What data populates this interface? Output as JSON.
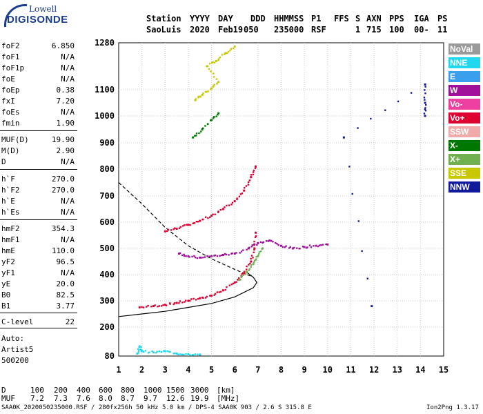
{
  "logo": {
    "line1": "Lowell",
    "line2": "DIGISONDE"
  },
  "header": {
    "row1": [
      "Station",
      "YYYY",
      "DAY",
      "DDD",
      "HHMMSS",
      "P1",
      "FFS",
      "S",
      "AXN",
      "PPS",
      "IGA",
      "PS"
    ],
    "row2": [
      "SaoLuis",
      "2020",
      "Feb19",
      "050",
      "235000",
      "RSF",
      "1",
      "715",
      "100",
      "00-",
      "11"
    ]
  },
  "params": [
    {
      "k": "foF2",
      "v": "6.850"
    },
    {
      "k": "foF1",
      "v": "N/A"
    },
    {
      "k": "foF1p",
      "v": "N/A"
    },
    {
      "k": "foE",
      "v": "N/A"
    },
    {
      "k": "foEp",
      "v": "0.38"
    },
    {
      "k": "fxI",
      "v": "7.20"
    },
    {
      "k": "foEs",
      "v": "N/A"
    },
    {
      "k": "fmin",
      "v": "1.90"
    },
    {
      "k": "MUF(D)",
      "v": "19.90"
    },
    {
      "k": "M(D)",
      "v": "2.90"
    },
    {
      "k": "D",
      "v": "N/A"
    },
    {
      "k": "h`F",
      "v": "270.0"
    },
    {
      "k": "h`F2",
      "v": "270.0"
    },
    {
      "k": "h`E",
      "v": "N/A"
    },
    {
      "k": "h`Es",
      "v": "N/A"
    },
    {
      "k": "hmF2",
      "v": "354.3"
    },
    {
      "k": "hmF1",
      "v": "N/A"
    },
    {
      "k": "hmE",
      "v": "110.0"
    },
    {
      "k": "yF2",
      "v": "96.5"
    },
    {
      "k": "yF1",
      "v": "N/A"
    },
    {
      "k": "yE",
      "v": "20.0"
    },
    {
      "k": "B0",
      "v": "82.5"
    },
    {
      "k": "B1",
      "v": "3.77"
    },
    {
      "k": "C-level",
      "v": "22"
    },
    {
      "k": "Auto:",
      "v": ""
    },
    {
      "k": "Artist5",
      "v": ""
    },
    {
      "k": "500200",
      "v": ""
    }
  ],
  "legend": [
    {
      "label": "NoVal",
      "color": "#9a9a9a"
    },
    {
      "label": "NNE",
      "color": "#22d8ee"
    },
    {
      "label": "E",
      "color": "#3aa0ee"
    },
    {
      "label": "W",
      "color": "#a0109a"
    },
    {
      "label": "Vo-",
      "color": "#ee40a0"
    },
    {
      "label": "Vo+",
      "color": "#dd0030"
    },
    {
      "label": "SSW",
      "color": "#f0aaaa"
    },
    {
      "label": "X-",
      "color": "#007800"
    },
    {
      "label": "X+",
      "color": "#70b050"
    },
    {
      "label": "SSE",
      "color": "#c8c800"
    },
    {
      "label": "NNW",
      "color": "#101a9a"
    }
  ],
  "chart_data": {
    "type": "scatter",
    "title": "",
    "xlabel": "",
    "ylabel": "",
    "xlim": [
      1,
      15
    ],
    "ylim": [
      80,
      1280
    ],
    "x_ticks": [
      1,
      2,
      3,
      4,
      5,
      6,
      7,
      8,
      9,
      10,
      11,
      12,
      13,
      14,
      15
    ],
    "y_ticks": [
      80,
      200,
      300,
      400,
      500,
      600,
      700,
      800,
      900,
      1000,
      1100,
      1280
    ],
    "grid": true,
    "series": [
      {
        "name": "Vo+",
        "points": [
          [
            1.9,
            275
          ],
          [
            2.5,
            280
          ],
          [
            3.0,
            285
          ],
          [
            3.5,
            292
          ],
          [
            4.0,
            300
          ],
          [
            4.5,
            310
          ],
          [
            5.0,
            320
          ],
          [
            5.5,
            340
          ],
          [
            6.0,
            370
          ],
          [
            6.4,
            405
          ],
          [
            6.7,
            450
          ],
          [
            6.85,
            500
          ],
          [
            6.9,
            560
          ]
        ]
      },
      {
        "name": "X+",
        "points": [
          [
            6.2,
            380
          ],
          [
            6.5,
            410
          ],
          [
            6.8,
            440
          ],
          [
            7.0,
            470
          ],
          [
            7.2,
            500
          ]
        ]
      },
      {
        "name": "Vo+",
        "points": [
          [
            3.0,
            565
          ],
          [
            3.5,
            575
          ],
          [
            4.0,
            590
          ],
          [
            4.5,
            605
          ],
          [
            5.0,
            625
          ],
          [
            5.5,
            650
          ],
          [
            6.0,
            680
          ],
          [
            6.4,
            720
          ],
          [
            6.7,
            770
          ],
          [
            6.9,
            810
          ]
        ]
      },
      {
        "name": "SSE",
        "points": [
          [
            4.3,
            1060
          ],
          [
            4.6,
            1080
          ],
          [
            5.0,
            1105
          ],
          [
            5.3,
            1130
          ],
          [
            4.8,
            1190
          ],
          [
            5.2,
            1210
          ],
          [
            5.6,
            1240
          ],
          [
            6.0,
            1265
          ]
        ]
      },
      {
        "name": "X-",
        "points": [
          [
            4.2,
            920
          ],
          [
            4.6,
            950
          ],
          [
            5.0,
            985
          ],
          [
            5.3,
            1010
          ]
        ]
      },
      {
        "name": "W",
        "points": [
          [
            3.6,
            480
          ],
          [
            4.0,
            470
          ],
          [
            4.5,
            465
          ],
          [
            5.0,
            470
          ],
          [
            5.5,
            475
          ],
          [
            6.0,
            480
          ],
          [
            6.6,
            500
          ],
          [
            7.0,
            520
          ],
          [
            7.5,
            530
          ],
          [
            8.0,
            510
          ],
          [
            8.5,
            500
          ],
          [
            9.0,
            505
          ],
          [
            9.5,
            510
          ],
          [
            10.0,
            515
          ]
        ]
      },
      {
        "name": "NNE",
        "points": [
          [
            1.8,
            90
          ],
          [
            1.9,
            120
          ],
          [
            2.0,
            100
          ],
          [
            2.5,
            95
          ],
          [
            3.0,
            100
          ],
          [
            3.5,
            90
          ],
          [
            4.0,
            88
          ],
          [
            4.5,
            86
          ]
        ]
      },
      {
        "name": "NNW",
        "points": [
          [
            14.2,
            1000
          ],
          [
            14.2,
            1050
          ],
          [
            14.2,
            1120
          ],
          [
            10.7,
            920
          ],
          [
            11.9,
            280
          ]
        ]
      }
    ],
    "trace_lines": [
      {
        "name": "solid",
        "points": [
          [
            1,
            240
          ],
          [
            2,
            250
          ],
          [
            3,
            260
          ],
          [
            4,
            275
          ],
          [
            5,
            290
          ],
          [
            6,
            315
          ],
          [
            6.8,
            350
          ],
          [
            6.95,
            370
          ],
          [
            6.8,
            390
          ],
          [
            6.5,
            410
          ]
        ]
      },
      {
        "name": "dashed",
        "points": [
          [
            1,
            750
          ],
          [
            2,
            670
          ],
          [
            3,
            580
          ],
          [
            4,
            510
          ],
          [
            5,
            460
          ],
          [
            6,
            420
          ],
          [
            6.8,
            390
          ]
        ]
      }
    ],
    "dist_row": {
      "label": "D",
      "values": [
        "100",
        "200",
        "400",
        "600",
        "800",
        "1000",
        "1500",
        "3000"
      ],
      "unit": "[km]"
    },
    "muf_row": {
      "label": "MUF",
      "values": [
        "7.2",
        "7.3",
        "7.6",
        "8.0",
        "8.7",
        "9.7",
        "12.6",
        "19.9"
      ],
      "unit": "[MHz]"
    }
  },
  "footer": {
    "left": "SAA0K_2020050235000.RSF / 280fx256h 50 kHz 5.0 km / DPS-4 SAA0K 903 / 2.6 S 315.8 E",
    "right": "Ion2Png 1.3.17"
  }
}
